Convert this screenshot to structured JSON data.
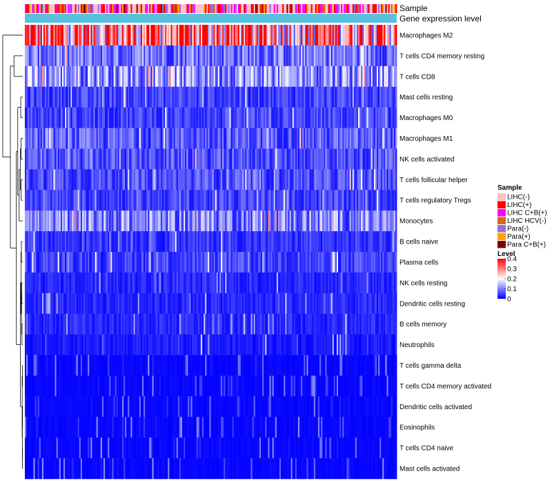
{
  "chart_data": {
    "type": "heatmap",
    "title": "",
    "annotations": [
      "Sample",
      "Gene expression level"
    ],
    "rows": [
      {
        "name": "Macrophages M2",
        "mean": 0.3
      },
      {
        "name": "T cells CD4 memory resting",
        "mean": 0.09
      },
      {
        "name": "T cells CD8",
        "mean": 0.12
      },
      {
        "name": "Mast cells resting",
        "mean": 0.05
      },
      {
        "name": "Macrophages M0",
        "mean": 0.05
      },
      {
        "name": "Macrophages M1",
        "mean": 0.07
      },
      {
        "name": "NK cells activated",
        "mean": 0.06
      },
      {
        "name": "T cells follicular helper",
        "mean": 0.06
      },
      {
        "name": "T cells regulatory  Tregs",
        "mean": 0.05
      },
      {
        "name": "Monocytes",
        "mean": 0.1
      },
      {
        "name": "B cells naive",
        "mean": 0.04
      },
      {
        "name": "Plasma cells",
        "mean": 0.05
      },
      {
        "name": "NK cells resting",
        "mean": 0.03
      },
      {
        "name": "Dendritic cells resting",
        "mean": 0.03
      },
      {
        "name": "B cells memory",
        "mean": 0.03
      },
      {
        "name": "Neutrophils",
        "mean": 0.02
      },
      {
        "name": "T cells gamma delta",
        "mean": 0.01
      },
      {
        "name": "T cells CD4 memory activated",
        "mean": 0.01
      },
      {
        "name": "Dendritic cells activated",
        "mean": 0.01
      },
      {
        "name": "Eosinophils",
        "mean": 0.005
      },
      {
        "name": "T cells CD4 naive",
        "mean": 0.01
      },
      {
        "name": "Mast cells activated",
        "mean": 0.01
      }
    ],
    "n_samples": 260,
    "sample_legend": {
      "title": "Sample",
      "items": [
        {
          "label": "LIHC(-)",
          "color": "#ffc0cb"
        },
        {
          "label": "LIHC(+)",
          "color": "#ff0000"
        },
        {
          "label": "LIHC C+B(+)",
          "color": "#ff00ff"
        },
        {
          "label": "LIHC HCV(-)",
          "color": "#d2691e"
        },
        {
          "label": "Para(-)",
          "color": "#9370db"
        },
        {
          "label": "Para(+)",
          "color": "#ffa500"
        },
        {
          "label": "Para C+B(+)",
          "color": "#800000"
        }
      ]
    },
    "level_legend": {
      "title": "Level",
      "ticks": [
        "0.4",
        "0.3",
        "0.2",
        "0.1",
        "0"
      ],
      "range": [
        0,
        0.4
      ]
    },
    "gene_expression_color": "#5bc0de",
    "colorscale": [
      "#0000ff",
      "#ffffff",
      "#ff0000"
    ]
  }
}
